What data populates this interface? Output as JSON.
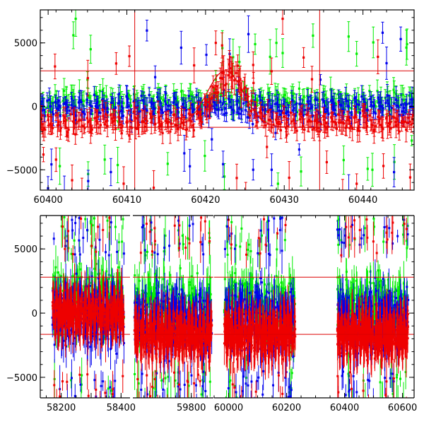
{
  "chart_data": [
    {
      "type": "scatter",
      "panel": "top",
      "title": "",
      "xlabel": "",
      "ylabel": "",
      "xlim": [
        60399,
        60446.5
      ],
      "ylim": [
        -6600,
        7600
      ],
      "xticks": [
        60400,
        60410,
        60420,
        60430,
        60440
      ],
      "xtick_labels": [
        "60400",
        "60410",
        "60420",
        "60430",
        "60440"
      ],
      "yticks": [
        -5000,
        0,
        5000
      ],
      "ytick_labels": [
        "−5000",
        "0",
        "5000"
      ],
      "grid": false,
      "error_bars": true,
      "hlines": [
        2800,
        -1650
      ],
      "vlines": [
        60411,
        60434.5
      ],
      "model_curve": {
        "shape": "bump",
        "baseline": -1650,
        "peak": 2800,
        "center_x": 60422.5,
        "range_x": [
          60411,
          60434.5
        ],
        "color": "#dd0000"
      },
      "series": [
        {
          "color": "#00ee00",
          "base": 0,
          "scatter": 900,
          "spread": 1500,
          "outlier_level": 4800,
          "points": [
            [
              60400.5,
              -300
            ],
            [
              60402.3,
              400
            ],
            [
              60403.2,
              5600
            ],
            [
              60403.5,
              6900
            ],
            [
              60405,
              2100
            ],
            [
              60405.4,
              4500
            ],
            [
              60406.6,
              1200
            ],
            [
              60408.9,
              -1200
            ],
            [
              60412.3,
              200
            ],
            [
              60414,
              800
            ],
            [
              60416.5,
              300
            ],
            [
              60418.5,
              -400
            ],
            [
              60421.3,
              2100
            ],
            [
              60424.3,
              3500
            ],
            [
              60426.3,
              4900
            ],
            [
              60428.2,
              3900
            ],
            [
              60429,
              5000
            ],
            [
              60429.8,
              4200
            ],
            [
              60429.2,
              -6100
            ],
            [
              60437.7,
              200
            ],
            [
              60439.4,
              500
            ],
            [
              60441.2,
              -5000
            ],
            [
              60443.9,
              1300
            ],
            [
              60445.6,
              4900
            ],
            [
              60446.2,
              -2700
            ]
          ]
        },
        {
          "color": "#0000ee",
          "base": -500,
          "scatter": 1000,
          "spread": 1600,
          "outlier_level": 5500,
          "points": [
            [
              60401,
              -500
            ],
            [
              60402.2,
              300
            ],
            [
              60404.2,
              -700
            ],
            [
              60406.1,
              -100
            ],
            [
              60409.4,
              -400
            ],
            [
              60413.6,
              2300
            ],
            [
              60414.9,
              1100
            ],
            [
              60417.3,
              -3700
            ],
            [
              60419.1,
              -300
            ],
            [
              60420.8,
              -2600
            ],
            [
              60422.3,
              1300
            ],
            [
              60424.2,
              1700
            ],
            [
              60426,
              -1400
            ],
            [
              60428.4,
              -5000
            ],
            [
              60428.9,
              -2100
            ],
            [
              60431.9,
              -3400
            ],
            [
              60434.6,
              2100
            ],
            [
              60436.2,
              -200
            ],
            [
              60437.8,
              600
            ],
            [
              60440.2,
              -100
            ],
            [
              60442.5,
              5800
            ],
            [
              60443,
              3400
            ],
            [
              60444.8,
              5300
            ],
            [
              60445.8,
              -900
            ]
          ]
        },
        {
          "color": "#ee0000",
          "base": -1650,
          "scatter": 900,
          "spread": 1400,
          "outlier_level": 4700,
          "points": [
            [
              60399.4,
              -3800
            ],
            [
              60401,
              -4200
            ],
            [
              60402.4,
              -2300
            ],
            [
              60405.4,
              -2000
            ],
            [
              60408.5,
              -1100
            ],
            [
              60410.3,
              -2300
            ],
            [
              60414.1,
              -1200
            ],
            [
              60416.8,
              -1600
            ],
            [
              60418.9,
              -600
            ],
            [
              60420.7,
              600
            ],
            [
              60421.3,
              5000
            ],
            [
              60422.1,
              4800
            ],
            [
              60423.3,
              2300
            ],
            [
              60424.1,
              3200
            ],
            [
              60425.8,
              -400
            ],
            [
              60427.8,
              -3200
            ],
            [
              60429.8,
              6900
            ],
            [
              60430.3,
              -2300
            ],
            [
              60433.8,
              -1700
            ],
            [
              60435.4,
              -4400
            ],
            [
              60437.8,
              -1700
            ],
            [
              60439.2,
              -6100
            ],
            [
              60441.9,
              3900
            ],
            [
              60442.6,
              -4700
            ],
            [
              60444.2,
              -1500
            ],
            [
              60446,
              -5600
            ]
          ]
        }
      ]
    },
    {
      "type": "scatter",
      "panel": "bottom",
      "title": "",
      "xlabel": "",
      "ylabel": "",
      "ylim": [
        -6600,
        7600
      ],
      "yticks": [
        -5000,
        0,
        5000
      ],
      "ytick_labels": [
        "−5000",
        "0",
        "5000"
      ],
      "grid": false,
      "error_bars": true,
      "hlines": [
        2800,
        -1650
      ],
      "segments": [
        {
          "xlim": [
            58130,
            58430
          ],
          "xticks": [
            58200,
            58300,
            58400
          ],
          "xtick_labels": [
            "58200",
            "",
            "58400"
          ]
        },
        {
          "xlim": [
            59615,
            59870
          ],
          "xticks": [
            59800
          ],
          "xtick_labels": [
            "59800"
          ]
        },
        {
          "xlim": [
            59950,
            60640
          ],
          "xticks": [
            60000,
            60200,
            60400,
            60600
          ],
          "xtick_labels": [
            "60000",
            "60200",
            "60400",
            "60600"
          ]
        }
      ],
      "observing_seasons": [
        {
          "range": [
            58170,
            58410
          ],
          "red_base": 0,
          "red_spread": 1700
        },
        {
          "range": [
            59620,
            59865
          ],
          "red_base": -1700,
          "red_spread": 1600
        },
        {
          "range": [
            59985,
            60230
          ],
          "red_base": -1700,
          "red_spread": 1600
        },
        {
          "range": [
            60375,
            60620
          ],
          "red_base": -1700,
          "red_spread": 1600
        }
      ],
      "series": [
        {
          "color": "#00ee00",
          "name": ""
        },
        {
          "color": "#0000ee",
          "name": ""
        },
        {
          "color": "#ee0000",
          "name": ""
        }
      ]
    }
  ]
}
